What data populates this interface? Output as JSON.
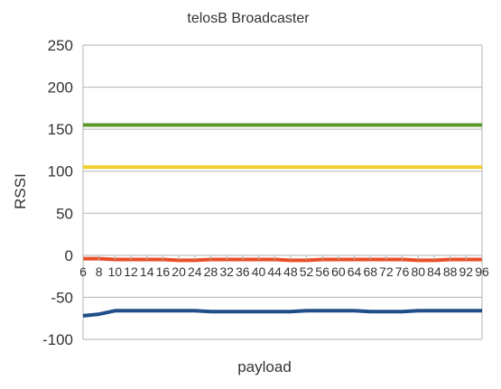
{
  "chart_data": {
    "type": "line",
    "title": "telosB Broadcaster",
    "xlabel": "payload",
    "ylabel": "RSSI",
    "ylim": [
      -100,
      250
    ],
    "yticks": [
      -100,
      -50,
      0,
      50,
      100,
      150,
      200,
      250
    ],
    "grid": true,
    "legend": "none",
    "x": [
      "6",
      "8",
      "10",
      "12",
      "14",
      "16",
      "20",
      "24",
      "28",
      "32",
      "36",
      "40",
      "44",
      "48",
      "52",
      "56",
      "60",
      "64",
      "68",
      "72",
      "76",
      "80",
      "84",
      "88",
      "92",
      "96"
    ],
    "series": [
      {
        "color": "#5a9a2a",
        "values": [
          155,
          155,
          155,
          155,
          155,
          155,
          155,
          155,
          155,
          155,
          155,
          155,
          155,
          155,
          155,
          155,
          155,
          155,
          155,
          155,
          155,
          155,
          155,
          155,
          155,
          155
        ]
      },
      {
        "color": "#f2cf2f",
        "values": [
          105,
          105,
          105,
          105,
          105,
          105,
          105,
          105,
          105,
          105,
          105,
          105,
          105,
          105,
          105,
          105,
          105,
          105,
          105,
          105,
          105,
          105,
          105,
          105,
          105,
          105
        ]
      },
      {
        "color": "#e8502a",
        "values": [
          -4,
          -4,
          -5,
          -5,
          -5,
          -5,
          -6,
          -6,
          -5,
          -5,
          -5,
          -5,
          -5,
          -6,
          -6,
          -5,
          -5,
          -5,
          -5,
          -5,
          -5,
          -6,
          -6,
          -5,
          -5,
          -5
        ]
      },
      {
        "color": "#1f4e89",
        "values": [
          -72,
          -70,
          -66,
          -66,
          -66,
          -66,
          -66,
          -66,
          -67,
          -67,
          -67,
          -67,
          -67,
          -67,
          -66,
          -66,
          -66,
          -66,
          -67,
          -67,
          -67,
          -66,
          -66,
          -66,
          -66,
          -66
        ]
      }
    ]
  }
}
